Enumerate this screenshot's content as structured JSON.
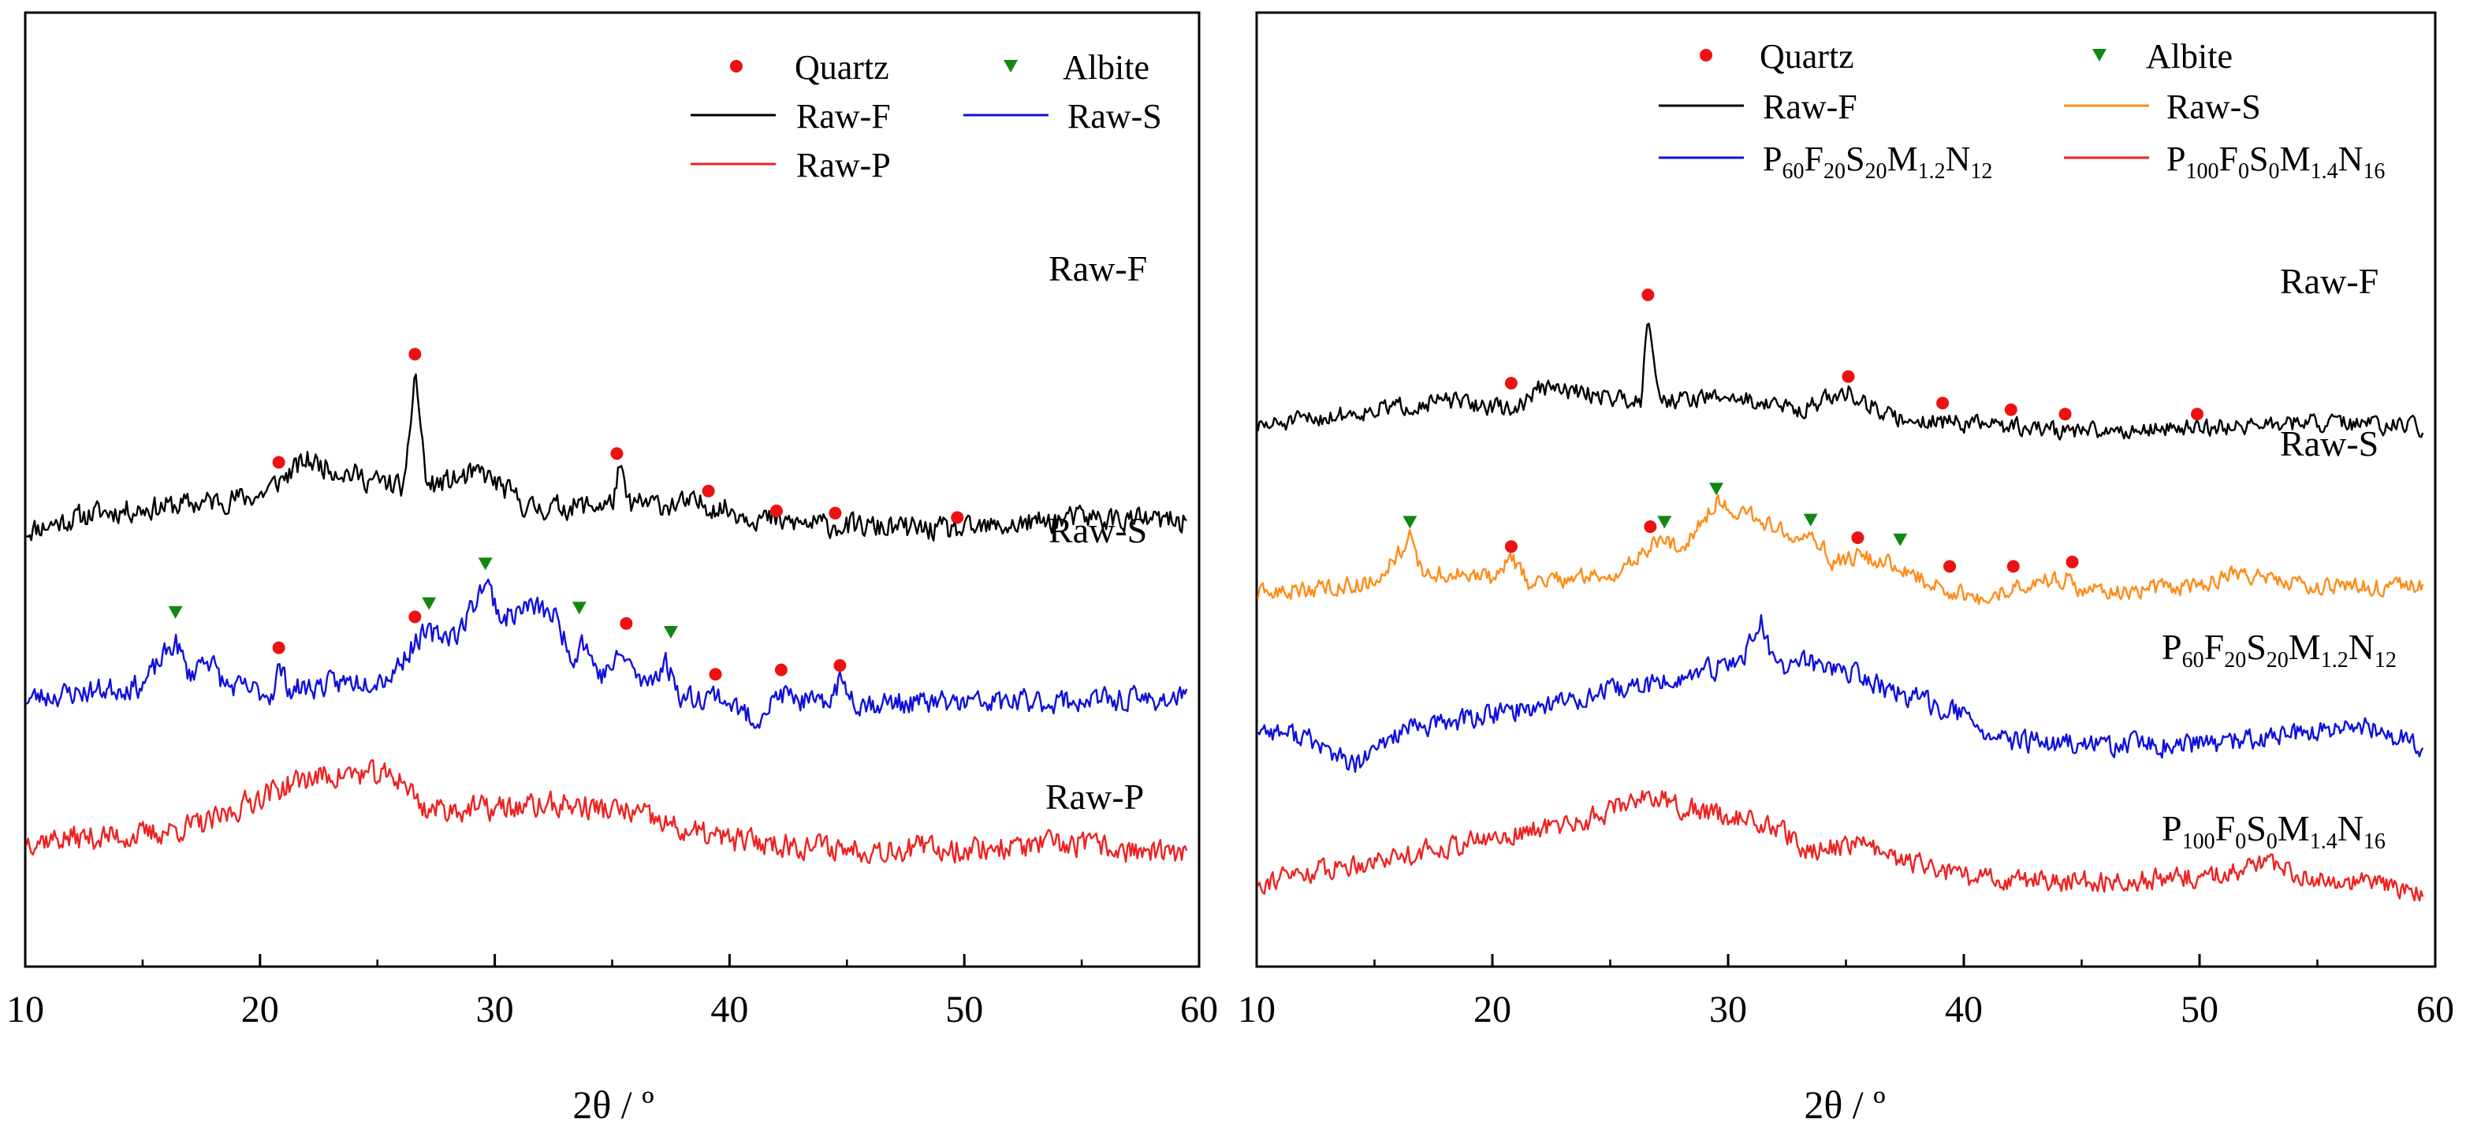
{
  "colors": {
    "quartz": "#ee1111",
    "albite": "#118811",
    "black": "#000000",
    "blue": "#1010dd",
    "red": "#ee2222",
    "orange": "#ff8c1a"
  },
  "chart_data": [
    {
      "type": "line",
      "xlabel": "2θ / º",
      "xlim": [
        10,
        60
      ],
      "xticks": [
        10,
        20,
        30,
        40,
        50,
        60
      ],
      "ylabel": "",
      "legend": {
        "placement": "top-right",
        "entries": [
          {
            "kind": "marker",
            "marker": "circle",
            "color": "#ee1111",
            "label": "Quartz"
          },
          {
            "kind": "marker",
            "marker": "triangle-down",
            "color": "#118811",
            "label": "Albite"
          },
          {
            "kind": "line",
            "color": "#000000",
            "label": "Raw-F"
          },
          {
            "kind": "line",
            "color": "#1010dd",
            "label": "Raw-S"
          },
          {
            "kind": "line",
            "color": "#ee2222",
            "label": "Raw-P"
          }
        ]
      },
      "series": [
        {
          "name": "Raw-F",
          "label_parts": [
            [
              "Raw-F",
              ""
            ]
          ],
          "color": "#000000",
          "offset": 7.6,
          "seed": 11,
          "noise": 0.24,
          "points": [
            [
              10,
              0.2
            ],
            [
              13,
              0.6
            ],
            [
              17,
              0.8
            ],
            [
              20,
              1.0
            ],
            [
              22,
              1.8
            ],
            [
              25,
              1.3
            ],
            [
              26.2,
              1.2
            ],
            [
              26.6,
              3.9
            ],
            [
              27.1,
              1.2
            ],
            [
              29.5,
              1.5
            ],
            [
              31.5,
              0.7
            ],
            [
              35,
              0.8
            ],
            [
              35.3,
              1.6
            ],
            [
              35.7,
              0.8
            ],
            [
              39,
              0.8
            ],
            [
              42,
              0.4
            ],
            [
              45,
              0.3
            ],
            [
              50,
              0.2
            ],
            [
              55,
              0.5
            ],
            [
              59.5,
              0.4
            ]
          ],
          "quartz": [
            [
              20.8,
              1.75
            ],
            [
              26.6,
              4.2
            ],
            [
              35.2,
              1.95
            ],
            [
              39.1,
              1.1
            ],
            [
              42.0,
              0.65
            ],
            [
              44.5,
              0.6
            ],
            [
              49.7,
              0.5
            ]
          ],
          "albite": []
        },
        {
          "name": "Raw-S",
          "label_parts": [
            [
              "Raw-S",
              ""
            ]
          ],
          "color": "#1010dd",
          "offset": 3.7,
          "seed": 23,
          "noise": 0.24,
          "points": [
            [
              10,
              0.3
            ],
            [
              15,
              0.6
            ],
            [
              16.4,
              1.6
            ],
            [
              17,
              0.8
            ],
            [
              17.7,
              1.3
            ],
            [
              18.5,
              0.6
            ],
            [
              20.5,
              0.4
            ],
            [
              20.8,
              1.0
            ],
            [
              21.3,
              0.5
            ],
            [
              25.5,
              0.8
            ],
            [
              26.8,
              1.7
            ],
            [
              28.5,
              1.8
            ],
            [
              29.6,
              3.0
            ],
            [
              30.3,
              2.1
            ],
            [
              31.5,
              2.4
            ],
            [
              32.5,
              2.2
            ],
            [
              33.4,
              1.2
            ],
            [
              33.7,
              1.7
            ],
            [
              34.5,
              0.8
            ],
            [
              35.5,
              1.3
            ],
            [
              36.3,
              0.6
            ],
            [
              37.3,
              1.1
            ],
            [
              38,
              0.3
            ],
            [
              39.5,
              0.4
            ],
            [
              41,
              -0.2
            ],
            [
              42.2,
              0.4
            ],
            [
              44,
              0.1
            ],
            [
              44.7,
              0.7
            ],
            [
              45.5,
              0.2
            ],
            [
              50,
              0.2
            ],
            [
              59.5,
              0.3
            ]
          ],
          "quartz": [
            [
              20.8,
              1.45
            ],
            [
              26.6,
              2.15
            ],
            [
              35.6,
              2.0
            ],
            [
              39.4,
              0.85
            ],
            [
              42.2,
              0.95
            ],
            [
              44.7,
              1.05
            ]
          ],
          "albite": [
            [
              16.4,
              2.25
            ],
            [
              27.2,
              2.45
            ],
            [
              29.6,
              3.35
            ],
            [
              33.6,
              2.35
            ],
            [
              37.5,
              1.8
            ]
          ]
        },
        {
          "name": "Raw-P",
          "label_parts": [
            [
              "Raw-P",
              ""
            ]
          ],
          "color": "#ee2222",
          "offset": 0.0,
          "seed": 37,
          "noise": 0.26,
          "points": [
            [
              10,
              0.8
            ],
            [
              15,
              0.9
            ],
            [
              18,
              1.2
            ],
            [
              20,
              1.8
            ],
            [
              22,
              2.2
            ],
            [
              24,
              2.3
            ],
            [
              26,
              2.2
            ],
            [
              27,
              1.5
            ],
            [
              30,
              1.5
            ],
            [
              33,
              1.6
            ],
            [
              36,
              1.4
            ],
            [
              38,
              1.0
            ],
            [
              40,
              0.8
            ],
            [
              45,
              0.6
            ],
            [
              50,
              0.6
            ],
            [
              55,
              0.7
            ],
            [
              59.5,
              0.4
            ]
          ],
          "quartz": [],
          "albite": []
        }
      ]
    },
    {
      "type": "line",
      "xlabel": "2θ / º",
      "xlim": [
        10,
        60
      ],
      "xticks": [
        10,
        20,
        30,
        40,
        50,
        60
      ],
      "ylabel": "",
      "legend": {
        "placement": "top",
        "entries": [
          {
            "kind": "marker",
            "marker": "circle",
            "color": "#ee1111",
            "label": "Quartz"
          },
          {
            "kind": "marker",
            "marker": "triangle-down",
            "color": "#118811",
            "label": "Albite"
          },
          {
            "kind": "line",
            "color": "#000000",
            "label": "Raw-F"
          },
          {
            "kind": "line",
            "color": "#ff8c1a",
            "label": "Raw-S"
          },
          {
            "kind": "line",
            "color": "#1010dd",
            "label": "P60F20S20M1.2N12"
          },
          {
            "kind": "line",
            "color": "#ee2222",
            "label": "P100F0S0M1.4N16"
          }
        ]
      },
      "series": [
        {
          "name": "Raw-F",
          "label_parts": [
            [
              "Raw-F",
              ""
            ]
          ],
          "color": "#000000",
          "offset": 10.3,
          "seed": 51,
          "noise": 0.18,
          "points": [
            [
              10,
              0.2
            ],
            [
              15,
              0.6
            ],
            [
              18,
              0.8
            ],
            [
              21,
              0.6
            ],
            [
              22,
              1.1
            ],
            [
              25,
              0.9
            ],
            [
              26.3,
              0.8
            ],
            [
              26.6,
              2.9
            ],
            [
              27.1,
              0.8
            ],
            [
              30,
              0.9
            ],
            [
              33,
              0.6
            ],
            [
              35.1,
              1.0
            ],
            [
              37,
              0.4
            ],
            [
              40,
              0.3
            ],
            [
              45,
              0.1
            ],
            [
              50,
              0.2
            ],
            [
              55,
              0.3
            ],
            [
              59.5,
              0.2
            ]
          ],
          "quartz": [
            [
              20.8,
              1.2
            ],
            [
              26.6,
              3.2
            ],
            [
              35.1,
              1.35
            ],
            [
              39.1,
              0.75
            ],
            [
              42.0,
              0.6
            ],
            [
              44.3,
              0.5
            ],
            [
              49.9,
              0.5
            ]
          ],
          "albite": []
        },
        {
          "name": "Raw-S",
          "label_parts": [
            [
              "Raw-S",
              ""
            ]
          ],
          "color": "#ff8c1a",
          "offset": 6.6,
          "seed": 63,
          "noise": 0.18,
          "points": [
            [
              10,
              0.1
            ],
            [
              15,
              0.4
            ],
            [
              16.5,
              1.4
            ],
            [
              17,
              0.6
            ],
            [
              20,
              0.5
            ],
            [
              20.8,
              0.9
            ],
            [
              21.5,
              0.4
            ],
            [
              25.5,
              0.6
            ],
            [
              26.8,
              1.3
            ],
            [
              28,
              1.2
            ],
            [
              29.5,
              2.2
            ],
            [
              31,
              1.9
            ],
            [
              32.5,
              1.5
            ],
            [
              33.5,
              1.6
            ],
            [
              34.5,
              0.8
            ],
            [
              35.5,
              1.0
            ],
            [
              37,
              0.8
            ],
            [
              38.5,
              0.4
            ],
            [
              41,
              -0.1
            ],
            [
              42,
              0.3
            ],
            [
              44.5,
              0.5
            ],
            [
              45,
              0.2
            ],
            [
              50,
              0.3
            ],
            [
              51.5,
              0.6
            ],
            [
              55,
              0.3
            ],
            [
              59.5,
              0.3
            ]
          ],
          "quartz": [
            [
              20.8,
              1.2
            ],
            [
              26.7,
              1.65
            ],
            [
              35.5,
              1.4
            ],
            [
              39.4,
              0.75
            ],
            [
              42.1,
              0.75
            ],
            [
              44.6,
              0.85
            ]
          ],
          "albite": [
            [
              16.5,
              1.75
            ],
            [
              27.3,
              1.75
            ],
            [
              29.5,
              2.5
            ],
            [
              33.5,
              1.8
            ],
            [
              37.3,
              1.35
            ]
          ]
        },
        {
          "name": "P60F20S20M1.2N12",
          "label_parts": [
            [
              "P",
              "60"
            ],
            [
              "F",
              "20"
            ],
            [
              "S",
              "20"
            ],
            [
              "M",
              "1.2"
            ],
            [
              "N",
              "12"
            ]
          ],
          "color": "#1010dd",
          "offset": 3.2,
          "seed": 77,
          "noise": 0.22,
          "points": [
            [
              10,
              0.5
            ],
            [
              12,
              0.3
            ],
            [
              14.2,
              -0.4
            ],
            [
              16,
              0.4
            ],
            [
              20,
              0.8
            ],
            [
              25,
              1.3
            ],
            [
              28,
              1.6
            ],
            [
              30.5,
              2.0
            ],
            [
              31.4,
              2.9
            ],
            [
              32,
              1.8
            ],
            [
              33,
              2.0
            ],
            [
              35,
              1.8
            ],
            [
              37,
              1.3
            ],
            [
              39.5,
              0.9
            ],
            [
              41.5,
              0.2
            ],
            [
              45,
              0.1
            ],
            [
              50,
              0.1
            ],
            [
              57,
              0.5
            ],
            [
              59.5,
              0.1
            ]
          ],
          "quartz": [],
          "albite": []
        },
        {
          "name": "P100F0S0M1.4N16",
          "label_parts": [
            [
              "P",
              "100"
            ],
            [
              "F",
              "0"
            ],
            [
              "S",
              "0"
            ],
            [
              "M",
              "1.4"
            ],
            [
              "N",
              "16"
            ]
          ],
          "color": "#ee2222",
          "offset": 0.0,
          "seed": 91,
          "noise": 0.22,
          "points": [
            [
              10,
              0.2
            ],
            [
              15,
              0.7
            ],
            [
              20,
              1.2
            ],
            [
              24,
              1.6
            ],
            [
              26.5,
              2.2
            ],
            [
              28,
              1.9
            ],
            [
              31,
              1.6
            ],
            [
              32.5,
              1.3
            ],
            [
              33,
              0.9
            ],
            [
              35.8,
              1.1
            ],
            [
              36.5,
              0.8
            ],
            [
              38,
              0.6
            ],
            [
              40,
              0.3
            ],
            [
              45,
              0.2
            ],
            [
              50,
              0.3
            ],
            [
              52.5,
              0.6
            ],
            [
              55,
              0.3
            ],
            [
              59.5,
              0.0
            ]
          ],
          "quartz": [],
          "albite": []
        }
      ]
    }
  ]
}
